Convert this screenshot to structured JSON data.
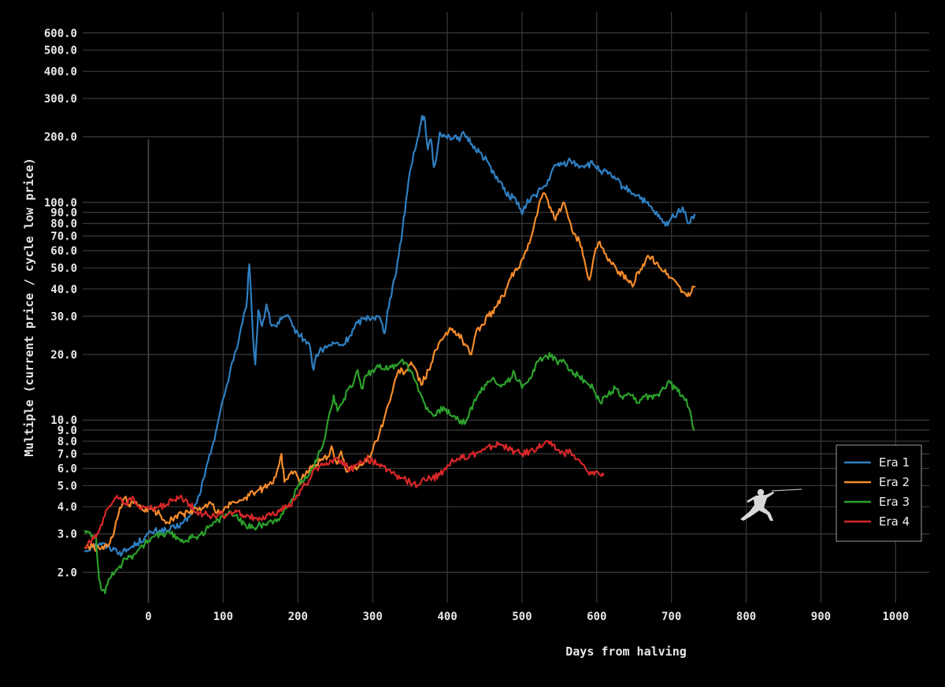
{
  "chart_data": {
    "type": "line",
    "title": "",
    "xlabel": "Days from halving",
    "ylabel": "Multiple (current price / cycle low price)",
    "xscale": "linear",
    "yscale": "log",
    "xlim": [
      -88,
      1045
    ],
    "ylim": [
      1.45,
      750
    ],
    "grid": true,
    "legend_position": "right",
    "x_ticks": [
      "0",
      "100",
      "200",
      "300",
      "400",
      "500",
      "600",
      "700",
      "800",
      "900",
      "1000"
    ],
    "x_tick_values": [
      0,
      100,
      200,
      300,
      400,
      500,
      600,
      700,
      800,
      900,
      1000
    ],
    "y_ticks": [
      "2.0",
      "3.0",
      "4.0",
      "5.0",
      "6.0",
      "7.0",
      "8.0",
      "9.0",
      "10.0",
      "20.0",
      "30.0",
      "40.0",
      "50.0",
      "60.0",
      "70.0",
      "80.0",
      "90.0",
      "100.0",
      "200.0",
      "300.0",
      "400.0",
      "500.0",
      "600.0"
    ],
    "y_tick_values": [
      2,
      3,
      4,
      5,
      6,
      7,
      8,
      9,
      10,
      20,
      30,
      40,
      50,
      60,
      70,
      80,
      90,
      100,
      200,
      300,
      400,
      500,
      600
    ],
    "series": [
      {
        "name": "Era 1",
        "color": "#2f7fc1",
        "x": [
          -85,
          -75,
          -65,
          -55,
          -45,
          -35,
          -25,
          -15,
          -5,
          5,
          15,
          25,
          35,
          45,
          55,
          65,
          75,
          85,
          95,
          105,
          112,
          120,
          126,
          131,
          135,
          140,
          143,
          147,
          152,
          158,
          163,
          170,
          178,
          185,
          193,
          200,
          208,
          215,
          221,
          225,
          232,
          240,
          250,
          260,
          270,
          280,
          290,
          300,
          310,
          316,
          320,
          330,
          340,
          348,
          355,
          362,
          366,
          370,
          374,
          378,
          382,
          386,
          390,
          395,
          403,
          413,
          423,
          433,
          443,
          453,
          463,
          470,
          478,
          488,
          495,
          500,
          506,
          512,
          518,
          525,
          533,
          540,
          547,
          555,
          565,
          575,
          585,
          595,
          605,
          615,
          625,
          635,
          645,
          655,
          665,
          675,
          685,
          692,
          700,
          708,
          715,
          722,
          728,
          731
        ],
        "y": [
          2.5,
          2.65,
          2.72,
          2.62,
          2.55,
          2.45,
          2.58,
          2.72,
          2.9,
          3.05,
          3.12,
          3.1,
          3.2,
          3.35,
          3.6,
          4.2,
          5.5,
          7.5,
          10.5,
          14.5,
          18.5,
          22.5,
          28,
          33,
          52,
          24,
          18,
          32,
          27,
          34,
          28,
          27,
          29,
          30,
          27,
          25,
          23.5,
          22.5,
          17,
          20,
          21,
          21.8,
          22.5,
          22,
          24.5,
          28,
          29.5,
          29.8,
          29.5,
          25,
          32,
          45,
          75,
          125,
          170,
          205,
          250,
          240,
          175,
          195,
          145,
          165,
          210,
          205,
          200,
          195,
          205,
          185,
          170,
          155,
          135,
          125,
          110,
          105,
          100,
          88,
          98,
          105,
          108,
          115,
          120,
          140,
          148,
          150,
          155,
          148,
          148,
          150,
          140,
          135,
          128,
          118,
          112,
          108,
          100,
          92,
          84,
          78,
          85,
          90,
          95,
          80,
          86,
          88
        ]
      },
      {
        "name": "Era 2",
        "color": "#f58c2c",
        "x": [
          -85,
          -75,
          -65,
          -55,
          -48,
          -40,
          -32,
          -25,
          -18,
          -10,
          -2,
          5,
          15,
          25,
          35,
          45,
          55,
          65,
          75,
          85,
          95,
          105,
          115,
          125,
          135,
          145,
          155,
          165,
          172,
          178,
          182,
          188,
          195,
          202,
          210,
          220,
          230,
          240,
          245,
          252,
          258,
          265,
          275,
          285,
          295,
          305,
          315,
          325,
          335,
          343,
          350,
          358,
          365,
          375,
          385,
          395,
          405,
          415,
          425,
          432,
          438,
          445,
          455,
          465,
          475,
          485,
          495,
          505,
          515,
          522,
          528,
          533,
          538,
          543,
          548,
          555,
          562,
          570,
          577,
          583,
          590,
          597,
          604,
          612,
          620,
          630,
          640,
          648,
          655,
          662,
          670,
          680,
          690,
          700,
          708,
          715,
          721,
          727,
          731
        ],
        "y": [
          2.6,
          2.62,
          2.55,
          2.62,
          2.9,
          3.7,
          4.4,
          4.0,
          4.2,
          4.0,
          3.8,
          3.9,
          3.7,
          3.4,
          3.6,
          3.7,
          3.75,
          3.9,
          4.0,
          4.1,
          3.7,
          4.0,
          4.2,
          4.3,
          4.5,
          4.7,
          4.9,
          5.1,
          5.8,
          7.0,
          5.2,
          5.6,
          5.8,
          5.2,
          5.6,
          6.2,
          6.5,
          6.8,
          7.6,
          6.3,
          7.2,
          5.8,
          6.0,
          6.2,
          6.8,
          8.0,
          10.0,
          13.0,
          17.0,
          16.5,
          18.0,
          17.0,
          14.5,
          17.0,
          21.0,
          24.0,
          26.0,
          25.0,
          22.0,
          20.0,
          25.0,
          27.0,
          30.0,
          33.0,
          37.0,
          45.0,
          50.0,
          60.0,
          75.0,
          95.0,
          110.0,
          105.0,
          95.0,
          85.0,
          88.0,
          100.0,
          85.0,
          72.0,
          66.0,
          55.0,
          44.0,
          58.0,
          66.0,
          58.0,
          52.0,
          48.0,
          44.0,
          41.0,
          48.0,
          52.0,
          56.0,
          53.0,
          48.0,
          45.0,
          42.0,
          39.0,
          37.0,
          39.0,
          41.0
        ]
      },
      {
        "name": "Era 3",
        "color": "#2ca02c",
        "x": [
          -85,
          -80,
          -75,
          -70,
          -66,
          -62,
          -58,
          -55,
          -50,
          -45,
          -40,
          -35,
          -30,
          -25,
          -20,
          -15,
          -10,
          -5,
          0,
          5,
          10,
          20,
          30,
          40,
          50,
          60,
          70,
          80,
          90,
          100,
          110,
          120,
          130,
          140,
          150,
          160,
          170,
          180,
          190,
          200,
          210,
          220,
          230,
          238,
          243,
          248,
          253,
          260,
          268,
          275,
          280,
          285,
          292,
          300,
          310,
          320,
          330,
          340,
          350,
          358,
          365,
          375,
          385,
          395,
          405,
          415,
          425,
          435,
          443,
          452,
          460,
          470,
          480,
          490,
          500,
          508,
          515,
          523,
          530,
          540,
          548,
          555,
          565,
          575,
          585,
          595,
          605,
          615,
          625,
          635,
          645,
          655,
          665,
          675,
          685,
          695,
          705,
          715,
          720,
          725,
          730
        ],
        "y": [
          3.1,
          3.05,
          2.95,
          2.85,
          1.85,
          1.65,
          1.6,
          1.75,
          1.9,
          2.0,
          2.1,
          2.2,
          2.3,
          2.35,
          2.4,
          2.5,
          2.65,
          2.7,
          2.8,
          2.9,
          3.0,
          2.95,
          3.0,
          2.85,
          2.8,
          2.9,
          3.0,
          3.2,
          3.4,
          3.6,
          3.8,
          3.5,
          3.3,
          3.2,
          3.3,
          3.4,
          3.5,
          3.7,
          4.2,
          5.0,
          5.5,
          6.0,
          7.2,
          9.0,
          11.0,
          13.0,
          11.0,
          12.0,
          14.0,
          15.0,
          17.0,
          14.0,
          16.0,
          17.0,
          18.0,
          17.0,
          18.0,
          19.0,
          17.0,
          15.0,
          13.0,
          11.0,
          10.5,
          11.5,
          10.5,
          10.0,
          9.8,
          12.0,
          13.5,
          14.5,
          15.5,
          14.5,
          15.0,
          16.5,
          14.0,
          15.0,
          17.0,
          19.0,
          19.5,
          20.0,
          18.0,
          19.0,
          17.0,
          16.0,
          15.0,
          14.0,
          12.0,
          13.0,
          14.0,
          12.5,
          13.0,
          12.0,
          13.0,
          12.5,
          13.5,
          15.0,
          14.0,
          13.0,
          12.5,
          11.0,
          9.0
        ]
      },
      {
        "name": "Era 4",
        "color": "#d62728",
        "x": [
          -85,
          -78,
          -70,
          -62,
          -55,
          -48,
          -42,
          -36,
          -30,
          -25,
          -18,
          -10,
          -2,
          5,
          15,
          25,
          35,
          45,
          55,
          65,
          75,
          85,
          95,
          105,
          115,
          125,
          135,
          145,
          155,
          165,
          175,
          185,
          195,
          205,
          215,
          225,
          235,
          245,
          255,
          262,
          270,
          280,
          290,
          300,
          310,
          320,
          330,
          340,
          350,
          360,
          370,
          380,
          390,
          400,
          410,
          420,
          430,
          440,
          450,
          460,
          470,
          480,
          490,
          500,
          510,
          520,
          530,
          535,
          540,
          548,
          556,
          565,
          573,
          580,
          585,
          590,
          595,
          600,
          605,
          609
        ],
        "y": [
          2.6,
          2.75,
          2.9,
          3.3,
          3.9,
          4.2,
          4.5,
          4.3,
          4.1,
          4.4,
          4.2,
          3.9,
          4.0,
          3.9,
          4.0,
          4.1,
          4.3,
          4.4,
          4.1,
          3.8,
          3.7,
          3.6,
          3.7,
          3.65,
          3.75,
          3.7,
          3.6,
          3.55,
          3.5,
          3.7,
          3.8,
          4.0,
          4.3,
          4.8,
          5.3,
          6.0,
          6.3,
          6.5,
          6.6,
          6.4,
          5.9,
          6.3,
          6.6,
          6.5,
          6.1,
          5.9,
          5.6,
          5.4,
          5.2,
          5.0,
          5.3,
          5.4,
          5.6,
          6.2,
          6.5,
          6.7,
          6.9,
          7.1,
          7.3,
          7.6,
          7.8,
          7.4,
          7.2,
          7.0,
          7.2,
          7.5,
          7.8,
          8.0,
          7.6,
          7.3,
          7.0,
          7.2,
          6.6,
          6.3,
          6.0,
          5.6,
          5.8,
          5.8,
          5.6,
          5.6
        ]
      }
    ]
  }
}
